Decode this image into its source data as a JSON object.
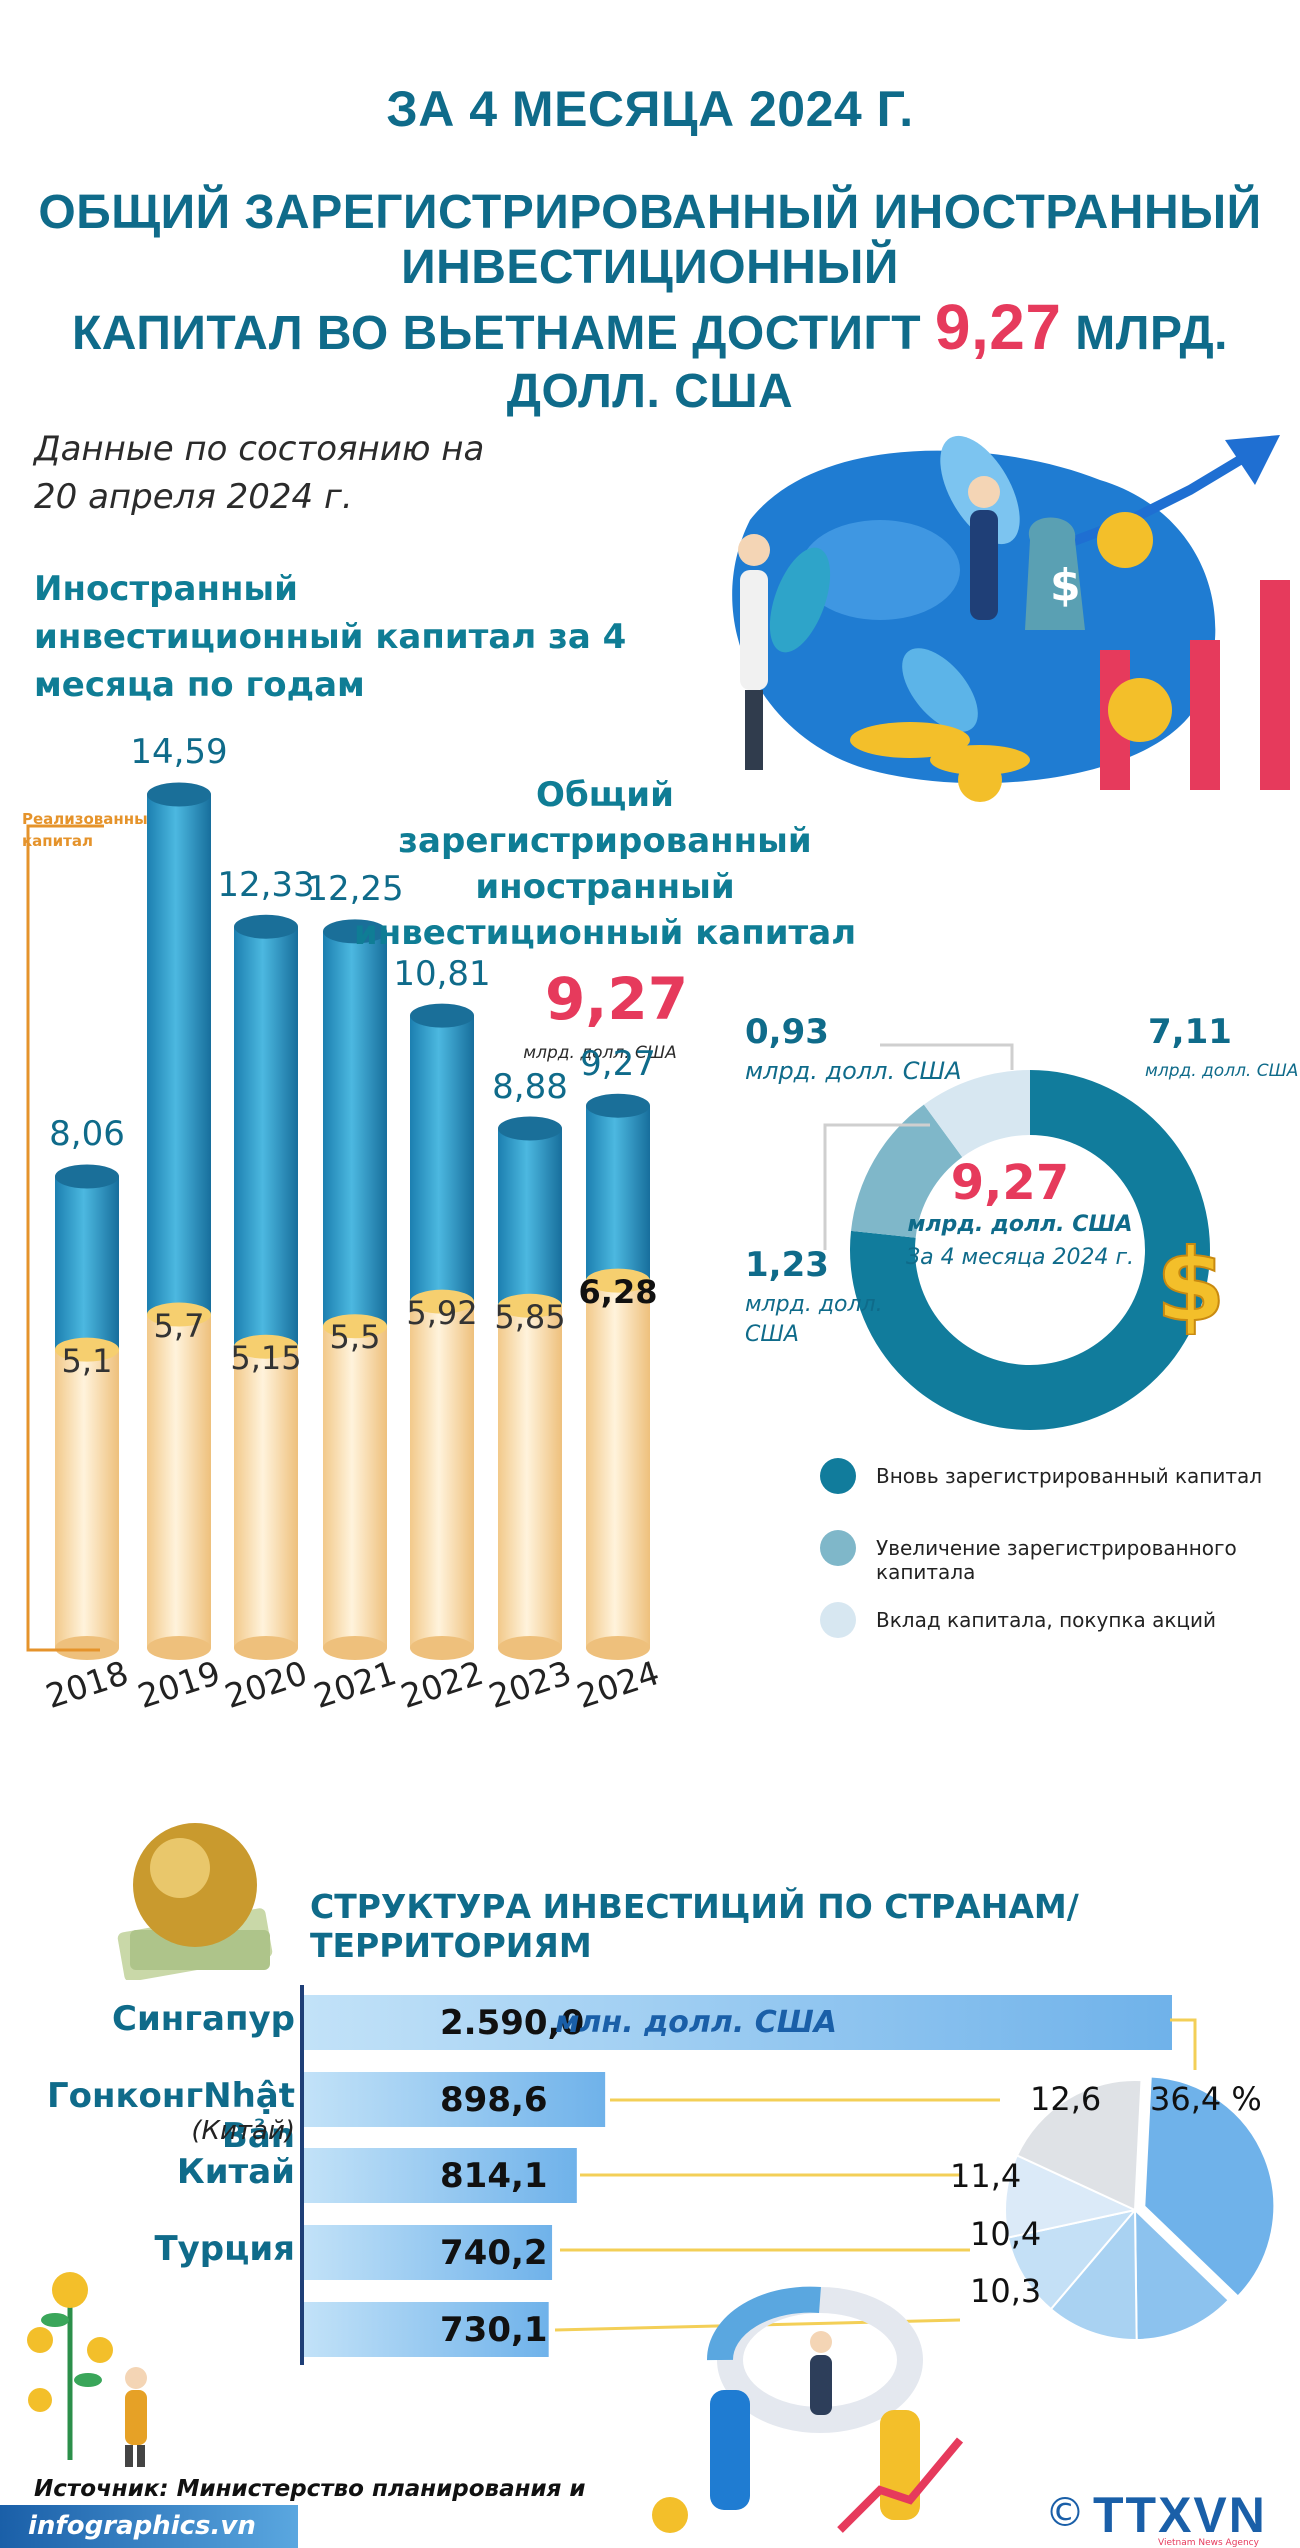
{
  "header": {
    "line1": "ЗА 4 МЕСЯЦА 2024 Г.",
    "line2": "ОБЩИЙ ЗАРЕГИСТРИРОВАННЫЙ ИНОСТРАННЫЙ ИНВЕСТИЦИОННЫЙ",
    "line3_pre": "КАПИТАЛ ВО ВЬЕТНАМЕ ДОСТИГТ",
    "line3_value": "9,27",
    "line3_post": "МЛРД. ДОЛЛ. США"
  },
  "as_of": "Данные по состоянию на 20 апреля 2024 г.",
  "section1_title": "Иностранный инвестиционный капитал за 4 месяца по годам",
  "realized_label": "Реализованный капитал",
  "total_label": "Общий зарегистрированный иностранный инвестиционный капитал",
  "total_value": "9,27",
  "total_unit": "млрд. долл. США",
  "colors": {
    "title": "#0f6b8a",
    "highlight": "#e63a5c",
    "bar_blue": "#1e8fc0",
    "bar_cream": "#fbe3b3",
    "donut_dark": "#117c9c",
    "donut_mid": "#7fb7c9",
    "donut_light": "#d7e7f1",
    "hbar": "#6fb2ea"
  },
  "chart_data": [
    {
      "type": "bar",
      "categories": [
        "2018",
        "2019",
        "2020",
        "2021",
        "2022",
        "2023",
        "2024"
      ],
      "series": [
        {
          "name": "Общий зарегистрированный иностранный инвестиционный капитал",
          "values": [
            8.06,
            14.59,
            12.33,
            12.25,
            10.81,
            8.88,
            9.27
          ]
        },
        {
          "name": "Реализованный капитал",
          "values": [
            5.1,
            5.7,
            5.15,
            5.5,
            5.92,
            5.85,
            6.28
          ]
        }
      ],
      "value_labels": {
        "total": [
          "8,06",
          "14,59",
          "12,33",
          "12,25",
          "10,81",
          "8,88",
          "9,27"
        ],
        "realized": [
          "5,1",
          "5,7",
          "5,15",
          "5,5",
          "5,92",
          "5,85",
          "6,28"
        ]
      },
      "ylim": [
        0,
        16
      ]
    },
    {
      "type": "pie",
      "donut": true,
      "center_value": "9,27",
      "center_unit": "млрд. долл. США",
      "center_sub": "За 4 месяца 2024 г.",
      "slices": [
        {
          "label": "Вновь зарегистрированный капитал",
          "value": 7.11,
          "display": "7,11",
          "unit": "млрд. долл. США",
          "color": "#117c9c"
        },
        {
          "label": "Увеличение зарегистрированного капитала",
          "value": 1.23,
          "display": "1,23",
          "unit": "млрд. долл. США",
          "color": "#7fb7c9"
        },
        {
          "label": "Вклад капитала, покупка акций",
          "value": 0.93,
          "display": "0,93",
          "unit": "млрд. долл. США",
          "color": "#d7e7f1"
        }
      ]
    },
    {
      "type": "bar",
      "orientation": "horizontal",
      "title": "СТРУКТУРА ИНВЕСТИЦИЙ ПО СТРАНАМ/ТЕРРИТОРИЯМ",
      "unit": "млн. долл. США",
      "categories": [
        "Сингапур",
        "ГонконгNhật Bản",
        "Китай",
        "Турция",
        ""
      ],
      "category_sub": [
        "",
        "(Китай)",
        "",
        "",
        ""
      ],
      "values": [
        2590.0,
        898.6,
        814.1,
        740.2,
        730.1
      ],
      "value_labels": [
        "2.590,0",
        "898,6",
        "814,1",
        "740,2",
        "730,1"
      ]
    },
    {
      "type": "pie",
      "slices": [
        {
          "value": 36.4,
          "display": "36,4 %",
          "color": "#6fb2ea"
        },
        {
          "value": 12.6,
          "display": "12,6",
          "color": "#8cc2ee"
        },
        {
          "value": 11.4,
          "display": "11,4",
          "color": "#a9d2f2"
        },
        {
          "value": 10.4,
          "display": "10,4",
          "color": "#c4e0f6"
        },
        {
          "value": 10.3,
          "display": "10,3",
          "color": "#dbeaf8"
        },
        {
          "value": 18.9,
          "display": "",
          "color": "#dfe2e6"
        }
      ]
    }
  ],
  "section2_title": "СТРУКТУРА ИНВЕСТИЦИЙ ПО СТРАНАМ/ТЕРРИТОРИЯМ",
  "source": "Источник: Министерство планирования и инвестиций.",
  "site": "infographics.vn",
  "copyright": "©",
  "brand": "TTXVN",
  "brand_sub": "Vietnam News Agency"
}
